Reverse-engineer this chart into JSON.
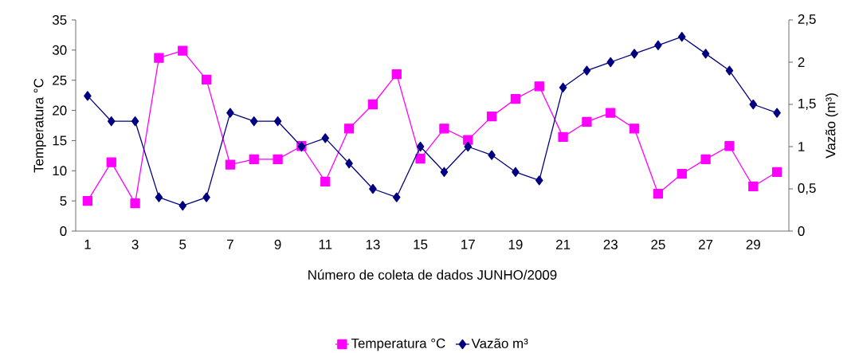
{
  "chart_data": {
    "type": "line",
    "xlabel": "Número de coleta de dados JUNHO/2009",
    "ylabel": "Temperatura °C",
    "y2label": "Vazão (m³)",
    "categories": [
      "1",
      null,
      "3",
      null,
      "5",
      null,
      "7",
      null,
      "9",
      null,
      "11",
      null,
      "13",
      null,
      "15",
      null,
      "17",
      null,
      "19",
      null,
      "21",
      null,
      "23",
      null,
      "25",
      null,
      "27",
      null,
      "29",
      null
    ],
    "series": [
      {
        "name": "Temperatura °C",
        "color": "#ff00ff",
        "marker": "square",
        "values": [
          5.0,
          11.4,
          4.6,
          28.7,
          29.9,
          25.1,
          11.0,
          11.9,
          11.9,
          14.1,
          8.2,
          17.0,
          21.0,
          26.0,
          12.0,
          17.0,
          15.1,
          19.0,
          21.9,
          24.0,
          15.6,
          18.1,
          19.6,
          17.0,
          6.2,
          9.5,
          11.9,
          14.1,
          7.4,
          9.8
        ]
      },
      {
        "name": "Vazão m³",
        "color": "#000080",
        "marker": "diamond",
        "axis": "y2",
        "values": [
          1.6,
          1.3,
          1.3,
          0.4,
          0.3,
          0.4,
          1.4,
          1.3,
          1.3,
          1.0,
          1.1,
          0.8,
          0.5,
          0.4,
          1.0,
          0.7,
          1.0,
          0.9,
          0.7,
          0.6,
          1.7,
          1.9,
          2.0,
          2.1,
          2.2,
          2.3,
          2.1,
          1.9,
          1.5,
          1.4
        ]
      }
    ],
    "ylim": [
      0,
      35
    ],
    "yticks": [
      0,
      5,
      10,
      15,
      20,
      25,
      30,
      35
    ],
    "y2lim": [
      0,
      2.5
    ],
    "y2ticks": [
      0,
      {
        "value": 0.5,
        "label": "0,5"
      },
      1,
      {
        "value": 1.5,
        "label": "1,5"
      },
      2,
      {
        "value": 2.5,
        "label": "2,5"
      }
    ],
    "legend": "bottom",
    "grid": false
  }
}
